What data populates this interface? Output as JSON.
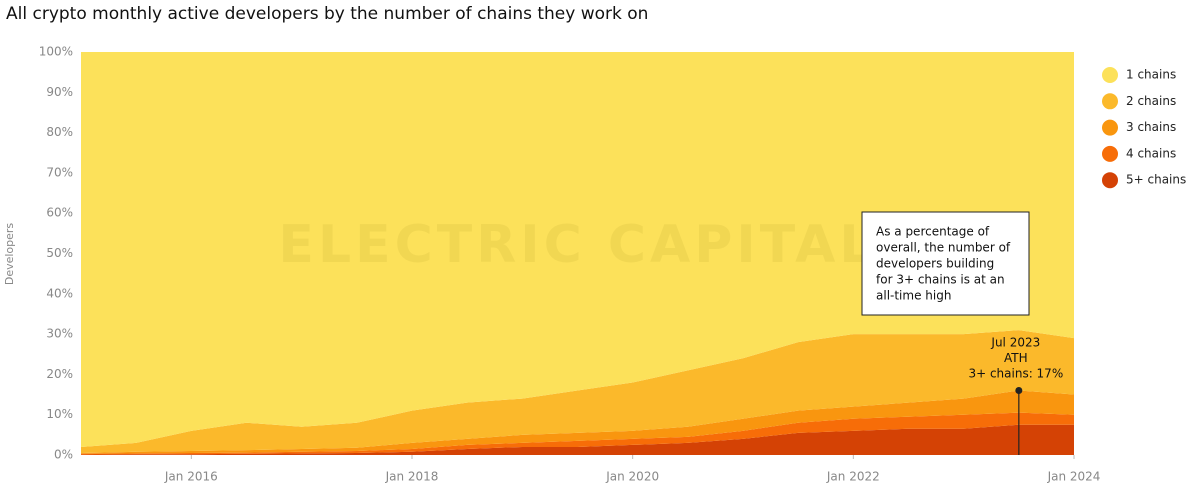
{
  "chart_data": {
    "type": "stacked-area-percent",
    "title": "All crypto monthly active developers by the number of chains they work on",
    "y_label": "Developers",
    "watermark": "ELECTRIC CAPITAL",
    "x": [
      "2015-01",
      "2015-07",
      "2016-01",
      "2016-07",
      "2017-01",
      "2017-07",
      "2018-01",
      "2018-07",
      "2019-01",
      "2019-07",
      "2020-01",
      "2020-07",
      "2021-01",
      "2021-07",
      "2022-01",
      "2022-07",
      "2023-01",
      "2023-07",
      "2024-01"
    ],
    "xlim": [
      "2015-01",
      "2024-01"
    ],
    "xticks": [
      {
        "value": "2016-01",
        "label": "Jan 2016"
      },
      {
        "value": "2018-01",
        "label": "Jan 2018"
      },
      {
        "value": "2020-01",
        "label": "Jan 2020"
      },
      {
        "value": "2022-01",
        "label": "Jan 2022"
      },
      {
        "value": "2024-01",
        "label": "Jan 2024"
      }
    ],
    "ylim": [
      0,
      100
    ],
    "yticks": [
      {
        "value": 0,
        "label": "0%"
      },
      {
        "value": 10,
        "label": "10%"
      },
      {
        "value": 20,
        "label": "20%"
      },
      {
        "value": 30,
        "label": "30%"
      },
      {
        "value": 40,
        "label": "40%"
      },
      {
        "value": 50,
        "label": "50%"
      },
      {
        "value": 60,
        "label": "60%"
      },
      {
        "value": 70,
        "label": "70%"
      },
      {
        "value": 80,
        "label": "80%"
      },
      {
        "value": 90,
        "label": "90%"
      },
      {
        "value": 100,
        "label": "100%"
      }
    ],
    "grid": false,
    "legend": "right",
    "series": [
      {
        "name": "1 chains",
        "color": "#fce15a",
        "values": [
          98,
          97,
          94,
          92,
          93,
          92,
          89,
          87,
          86,
          84,
          82,
          79,
          76,
          72,
          70,
          70,
          70,
          69,
          71
        ]
      },
      {
        "name": "2 chains",
        "color": "#fbb92b",
        "values": [
          1.5,
          2.2,
          5,
          6.8,
          5.5,
          6.2,
          8,
          9,
          9,
          10.5,
          12,
          14,
          15,
          17,
          18,
          17,
          16,
          15,
          14
        ]
      },
      {
        "name": "3 chains",
        "color": "#f9960f",
        "values": [
          0.2,
          0.4,
          0.5,
          0.6,
          0.7,
          0.8,
          1.5,
          1.5,
          2,
          2,
          2,
          2.5,
          3,
          3,
          3,
          3.5,
          4,
          5.5,
          5
        ]
      },
      {
        "name": "4 chains",
        "color": "#f76d08",
        "values": [
          0.2,
          0.2,
          0.3,
          0.3,
          0.4,
          0.5,
          0.7,
          1,
          1,
          1.5,
          1.5,
          1.5,
          2,
          2.5,
          3,
          3,
          3.5,
          3,
          2.5
        ]
      },
      {
        "name": "5+ chains",
        "color": "#d44205",
        "values": [
          0.1,
          0.2,
          0.2,
          0.3,
          0.4,
          0.5,
          0.8,
          1.5,
          2,
          2,
          2.5,
          3,
          4,
          5.5,
          6,
          6.5,
          6.5,
          7.5,
          7.5
        ]
      }
    ],
    "annotations": [
      {
        "lines": [
          "As a percentage of",
          "overall, the number of",
          "developers building",
          "for 3+ chains is at an",
          "all-time high"
        ]
      },
      {
        "x": "2023-07",
        "lines": [
          "Jul 2023",
          "ATH",
          "3+ chains: 17%"
        ]
      }
    ]
  }
}
